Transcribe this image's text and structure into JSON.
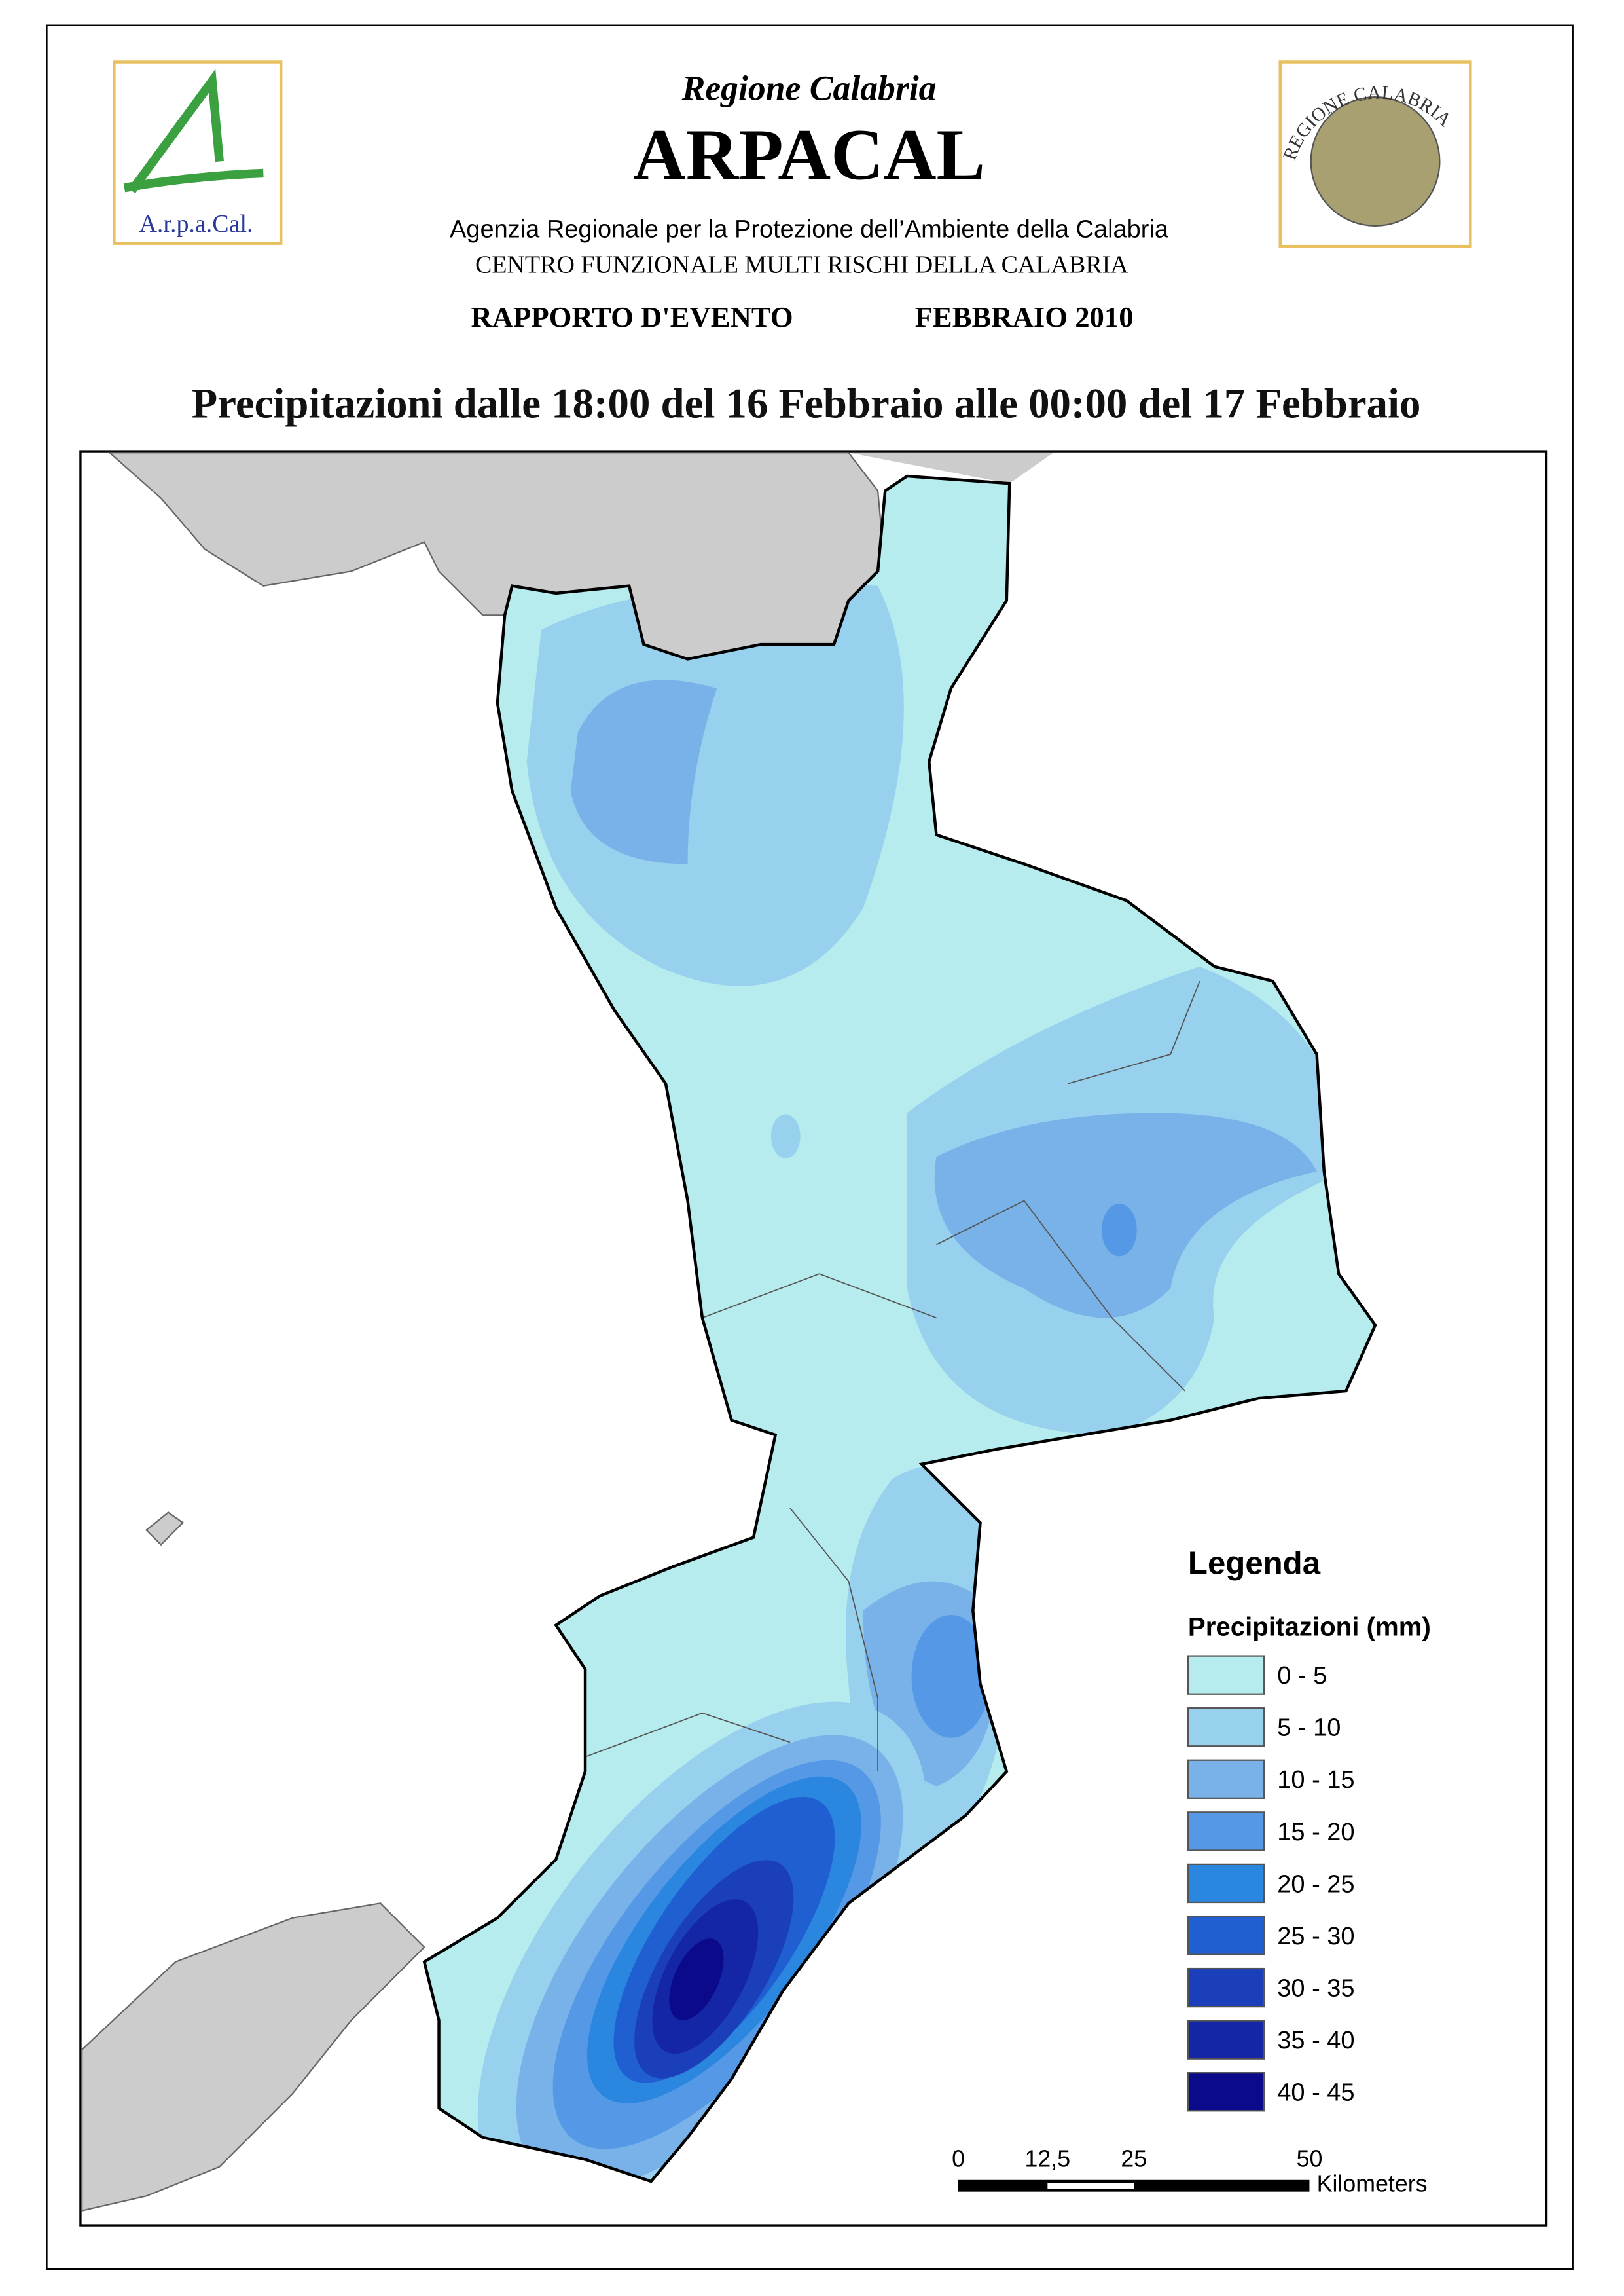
{
  "header": {
    "region": "Regione Calabria",
    "agency": "ARPACAL",
    "logo_left": "A.r.p.a.Cal.",
    "logo_right": "REGIONE CALABRIA",
    "agency_full": "Agenzia Regionale per la Protezione dell’Ambiente della Calabria",
    "centre": "CENTRO FUNZIONALE MULTI RISCHI DELLA CALABRIA",
    "report": "RAPPORTO D'EVENTO",
    "month": "FEBBRAIO 2010",
    "title": "Precipitazioni dalle 18:00 del 16 Febbraio alle 00:00 del 17 Febbraio"
  },
  "legend": {
    "title": "Legenda",
    "subtitle": "Precipitazioni (mm)",
    "classes": [
      {
        "label": "0 - 5",
        "color": "#b6ecee"
      },
      {
        "label": "5 - 10",
        "color": "#97d1ee"
      },
      {
        "label": "10 - 15",
        "color": "#79b2e8"
      },
      {
        "label": "15 - 20",
        "color": "#5599e6"
      },
      {
        "label": "20 - 25",
        "color": "#2a86de"
      },
      {
        "label": "25 - 30",
        "color": "#1f5fd2"
      },
      {
        "label": "30 - 35",
        "color": "#1b3fbb"
      },
      {
        "label": "35 - 40",
        "color": "#1426a5"
      },
      {
        "label": "40 - 45",
        "color": "#0a0a8a"
      }
    ]
  },
  "scale_bar": {
    "ticks": [
      "0",
      "12,5",
      "25",
      "50"
    ],
    "unit": "Kilometers"
  }
}
